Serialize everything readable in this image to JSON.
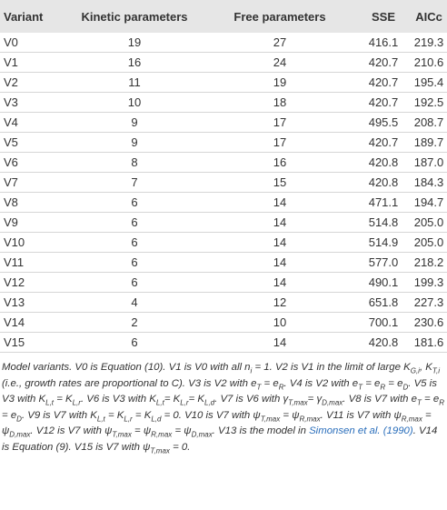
{
  "table": {
    "header": [
      "Variant",
      "Kinetic parameters",
      "Free parameters",
      "SSE",
      "AICc"
    ],
    "rows": [
      [
        "V0",
        "19",
        "27",
        "416.1",
        "219.3"
      ],
      [
        "V1",
        "16",
        "24",
        "420.7",
        "210.6"
      ],
      [
        "V2",
        "11",
        "19",
        "420.7",
        "195.4"
      ],
      [
        "V3",
        "10",
        "18",
        "420.7",
        "192.5"
      ],
      [
        "V4",
        "9",
        "17",
        "495.5",
        "208.7"
      ],
      [
        "V5",
        "9",
        "17",
        "420.7",
        "189.7"
      ],
      [
        "V6",
        "8",
        "16",
        "420.8",
        "187.0"
      ],
      [
        "V7",
        "7",
        "15",
        "420.8",
        "184.3"
      ],
      [
        "V8",
        "6",
        "14",
        "471.1",
        "194.7"
      ],
      [
        "V9",
        "6",
        "14",
        "514.8",
        "205.0"
      ],
      [
        "V10",
        "6",
        "14",
        "514.9",
        "205.0"
      ],
      [
        "V11",
        "6",
        "14",
        "577.0",
        "218.2"
      ],
      [
        "V12",
        "6",
        "14",
        "490.1",
        "199.3"
      ],
      [
        "V13",
        "4",
        "12",
        "651.8",
        "227.3"
      ],
      [
        "V14",
        "2",
        "10",
        "700.1",
        "230.6"
      ],
      [
        "V15",
        "6",
        "14",
        "420.8",
        "181.6"
      ]
    ]
  },
  "caption": [
    "Model variants. V0 is Equation (10). V1 is V0 with all n",
    {
      "sub": "i"
    },
    " = 1. V2 is V1 in the limit of large K",
    {
      "sub": "G,i"
    },
    ", K",
    {
      "sub": "T,i"
    },
    " (i.e., growth rates are proportional to C). V3 is V2 with e",
    {
      "sub": "T"
    },
    " = e",
    {
      "sub": "R"
    },
    ". V4 is V2 with e",
    {
      "sub": "T"
    },
    " = e",
    {
      "sub": "R"
    },
    " = e",
    {
      "sub": "D"
    },
    ". V5 is V3 with K",
    {
      "sub": "L,t"
    },
    " = K",
    {
      "sub": "L,r"
    },
    ". V6 is V3 with K",
    {
      "sub": "L,t"
    },
    "= K",
    {
      "sub": "L,r"
    },
    "= K",
    {
      "sub": "L,d"
    },
    ". V7 is V6 with γ",
    {
      "sub": "T,max"
    },
    "= γ",
    {
      "sub": "D,max"
    },
    ". V8 is V7 with e",
    {
      "sub": "T"
    },
    " = e",
    {
      "sub": "R"
    },
    " = e",
    {
      "sub": "D"
    },
    ". V9 is V7 with K",
    {
      "sub": "L,t"
    },
    " = K",
    {
      "sub": "L,r"
    },
    " = K",
    {
      "sub": "L,d"
    },
    " = 0. V10 is V7 with ψ",
    {
      "sub": "T,max"
    },
    " = ψ",
    {
      "sub": "R,max"
    },
    ". V11 is V7 with ψ",
    {
      "sub": "R,max"
    },
    " = ψ",
    {
      "sub": "D,max"
    },
    ". V12 is V7 with ψ",
    {
      "sub": "T,max"
    },
    " = ψ",
    {
      "sub": "R,max"
    },
    " = ψ",
    {
      "sub": "D,max"
    },
    ". V13 is the model in ",
    {
      "link": "Simonsen et al. (1990)"
    },
    ". V14 is Equation (9). V15 is V7 with ψ",
    {
      "sub": "T,max"
    },
    " = 0."
  ]
}
